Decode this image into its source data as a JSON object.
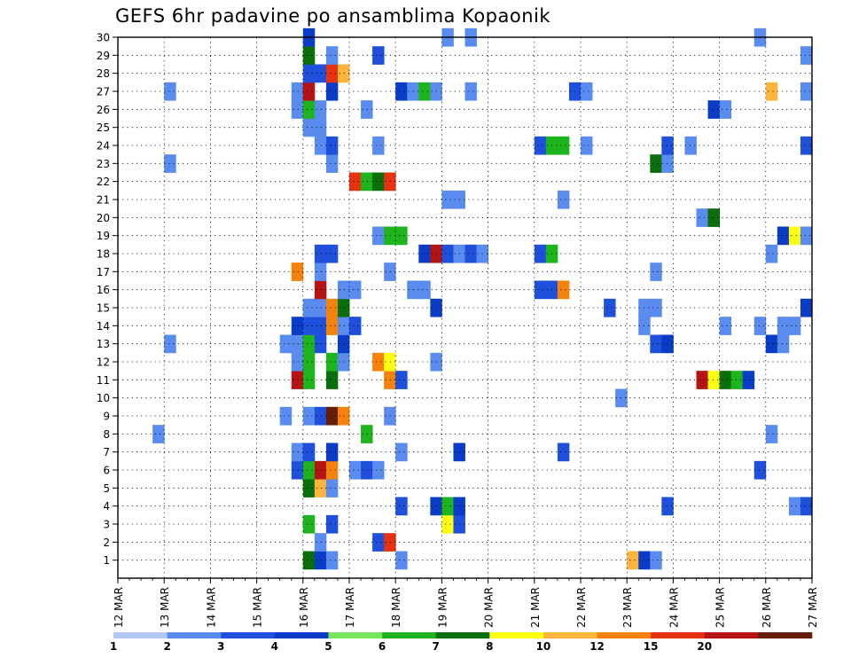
{
  "page": {
    "title": "GEFS 6hr padavine po ansamblima Kopaonik"
  },
  "chart_data": {
    "type": "heatmap",
    "title": "GEFS 6hr padavine po ansamblima Kopaonik",
    "xlabel": "",
    "ylabel": "",
    "x_ticks": [
      "12 MAR",
      "13 MAR",
      "14 MAR",
      "15 MAR",
      "16 MAR",
      "17 MAR",
      "18 MAR",
      "19 MAR",
      "20 MAR",
      "21 MAR",
      "22 MAR",
      "23 MAR",
      "24 MAR",
      "25 MAR",
      "26 MAR",
      "27 MAR"
    ],
    "y_ticks": [
      1,
      2,
      3,
      4,
      5,
      6,
      7,
      8,
      9,
      10,
      11,
      12,
      13,
      14,
      15,
      16,
      17,
      18,
      19,
      20,
      21,
      22,
      23,
      24,
      25,
      26,
      27,
      28,
      29,
      30
    ],
    "x_range_steps": [
      0,
      60
    ],
    "y_range": [
      0,
      30
    ],
    "steps_per_day": 4,
    "grid": "dotted",
    "colorbar": {
      "placement": "bottom",
      "levels": [
        "1",
        "2",
        "3",
        "4",
        "5",
        "6",
        "7",
        "8",
        "10",
        "12",
        "15",
        "20"
      ],
      "colors": [
        "#b4c8f5",
        "#5a8cf0",
        "#1e50dc",
        "#0a3cc8",
        "#78e65a",
        "#1eb41e",
        "#0a6e0a",
        "#ffff14",
        "#ffb43c",
        "#f5820a",
        "#e6320f",
        "#b41414",
        "#641e0a"
      ]
    },
    "cells": [
      {
        "m": 1,
        "t": 16,
        "c": 6
      },
      {
        "m": 1,
        "t": 17,
        "c": 3
      },
      {
        "m": 1,
        "t": 18,
        "c": 1
      },
      {
        "m": 1,
        "t": 24,
        "c": 1
      },
      {
        "m": 1,
        "t": 44,
        "c": 8
      },
      {
        "m": 1,
        "t": 45,
        "c": 3
      },
      {
        "m": 1,
        "t": 46,
        "c": 1
      },
      {
        "m": 2,
        "t": 17,
        "c": 1
      },
      {
        "m": 2,
        "t": 22,
        "c": 2
      },
      {
        "m": 2,
        "t": 23,
        "c": 10
      },
      {
        "m": 3,
        "t": 16,
        "c": 5
      },
      {
        "m": 3,
        "t": 18,
        "c": 2
      },
      {
        "m": 3,
        "t": 28,
        "c": 7
      },
      {
        "m": 3,
        "t": 29,
        "c": 2
      },
      {
        "m": 4,
        "t": 24,
        "c": 2
      },
      {
        "m": 4,
        "t": 27,
        "c": 3
      },
      {
        "m": 4,
        "t": 28,
        "c": 5
      },
      {
        "m": 4,
        "t": 29,
        "c": 3
      },
      {
        "m": 4,
        "t": 47,
        "c": 2
      },
      {
        "m": 4,
        "t": 58,
        "c": 1
      },
      {
        "m": 4,
        "t": 59,
        "c": 2
      },
      {
        "m": 5,
        "t": 16,
        "c": 6
      },
      {
        "m": 5,
        "t": 17,
        "c": 8
      },
      {
        "m": 5,
        "t": 18,
        "c": 1
      },
      {
        "m": 6,
        "t": 15,
        "c": 2
      },
      {
        "m": 6,
        "t": 16,
        "c": 5
      },
      {
        "m": 6,
        "t": 17,
        "c": 11
      },
      {
        "m": 6,
        "t": 18,
        "c": 9
      },
      {
        "m": 6,
        "t": 20,
        "c": 1
      },
      {
        "m": 6,
        "t": 21,
        "c": 2
      },
      {
        "m": 6,
        "t": 22,
        "c": 1
      },
      {
        "m": 6,
        "t": 55,
        "c": 2
      },
      {
        "m": 7,
        "t": 15,
        "c": 1
      },
      {
        "m": 7,
        "t": 16,
        "c": 2
      },
      {
        "m": 7,
        "t": 18,
        "c": 3
      },
      {
        "m": 7,
        "t": 24,
        "c": 1
      },
      {
        "m": 7,
        "t": 29,
        "c": 3
      },
      {
        "m": 7,
        "t": 38,
        "c": 2
      },
      {
        "m": 8,
        "t": 3,
        "c": 1
      },
      {
        "m": 8,
        "t": 21,
        "c": 5
      },
      {
        "m": 8,
        "t": 56,
        "c": 1
      },
      {
        "m": 9,
        "t": 14,
        "c": 1
      },
      {
        "m": 9,
        "t": 16,
        "c": 1
      },
      {
        "m": 9,
        "t": 17,
        "c": 2
      },
      {
        "m": 9,
        "t": 18,
        "c": 12
      },
      {
        "m": 9,
        "t": 19,
        "c": 9
      },
      {
        "m": 9,
        "t": 23,
        "c": 1
      },
      {
        "m": 10,
        "t": 43,
        "c": 1
      },
      {
        "m": 11,
        "t": 15,
        "c": 11
      },
      {
        "m": 11,
        "t": 16,
        "c": 5
      },
      {
        "m": 11,
        "t": 18,
        "c": 6
      },
      {
        "m": 11,
        "t": 23,
        "c": 9
      },
      {
        "m": 11,
        "t": 24,
        "c": 2
      },
      {
        "m": 11,
        "t": 50,
        "c": 11
      },
      {
        "m": 11,
        "t": 51,
        "c": 7
      },
      {
        "m": 11,
        "t": 52,
        "c": 6
      },
      {
        "m": 11,
        "t": 53,
        "c": 5
      },
      {
        "m": 11,
        "t": 54,
        "c": 3
      },
      {
        "m": 12,
        "t": 15,
        "c": 1
      },
      {
        "m": 12,
        "t": 16,
        "c": 5
      },
      {
        "m": 12,
        "t": 18,
        "c": 5
      },
      {
        "m": 12,
        "t": 19,
        "c": 1
      },
      {
        "m": 12,
        "t": 22,
        "c": 9
      },
      {
        "m": 12,
        "t": 23,
        "c": 7
      },
      {
        "m": 12,
        "t": 27,
        "c": 1
      },
      {
        "m": 13,
        "t": 4,
        "c": 1
      },
      {
        "m": 13,
        "t": 14,
        "c": 1
      },
      {
        "m": 13,
        "t": 15,
        "c": 1
      },
      {
        "m": 13,
        "t": 16,
        "c": 5
      },
      {
        "m": 13,
        "t": 17,
        "c": 2
      },
      {
        "m": 13,
        "t": 19,
        "c": 3
      },
      {
        "m": 13,
        "t": 46,
        "c": 2
      },
      {
        "m": 13,
        "t": 47,
        "c": 3
      },
      {
        "m": 13,
        "t": 56,
        "c": 3
      },
      {
        "m": 13,
        "t": 57,
        "c": 1
      },
      {
        "m": 14,
        "t": 15,
        "c": 3
      },
      {
        "m": 14,
        "t": 16,
        "c": 2
      },
      {
        "m": 14,
        "t": 17,
        "c": 2
      },
      {
        "m": 14,
        "t": 18,
        "c": 9
      },
      {
        "m": 14,
        "t": 19,
        "c": 1
      },
      {
        "m": 14,
        "t": 20,
        "c": 2
      },
      {
        "m": 14,
        "t": 45,
        "c": 1
      },
      {
        "m": 14,
        "t": 52,
        "c": 1
      },
      {
        "m": 14,
        "t": 55,
        "c": 1
      },
      {
        "m": 14,
        "t": 57,
        "c": 1
      },
      {
        "m": 14,
        "t": 58,
        "c": 1
      },
      {
        "m": 15,
        "t": 16,
        "c": 1
      },
      {
        "m": 15,
        "t": 17,
        "c": 1
      },
      {
        "m": 15,
        "t": 18,
        "c": 9
      },
      {
        "m": 15,
        "t": 19,
        "c": 6
      },
      {
        "m": 15,
        "t": 27,
        "c": 3
      },
      {
        "m": 15,
        "t": 42,
        "c": 2
      },
      {
        "m": 15,
        "t": 45,
        "c": 1
      },
      {
        "m": 15,
        "t": 46,
        "c": 1
      },
      {
        "m": 15,
        "t": 59,
        "c": 3
      },
      {
        "m": 16,
        "t": 17,
        "c": 11
      },
      {
        "m": 16,
        "t": 19,
        "c": 1
      },
      {
        "m": 16,
        "t": 20,
        "c": 1
      },
      {
        "m": 16,
        "t": 25,
        "c": 1
      },
      {
        "m": 16,
        "t": 26,
        "c": 1
      },
      {
        "m": 16,
        "t": 36,
        "c": 2
      },
      {
        "m": 16,
        "t": 37,
        "c": 2
      },
      {
        "m": 16,
        "t": 38,
        "c": 9
      },
      {
        "m": 17,
        "t": 15,
        "c": 9
      },
      {
        "m": 17,
        "t": 17,
        "c": 1
      },
      {
        "m": 17,
        "t": 23,
        "c": 1
      },
      {
        "m": 17,
        "t": 46,
        "c": 1
      },
      {
        "m": 18,
        "t": 17,
        "c": 2
      },
      {
        "m": 18,
        "t": 18,
        "c": 2
      },
      {
        "m": 18,
        "t": 26,
        "c": 3
      },
      {
        "m": 18,
        "t": 27,
        "c": 11
      },
      {
        "m": 18,
        "t": 28,
        "c": 2
      },
      {
        "m": 18,
        "t": 29,
        "c": 1
      },
      {
        "m": 18,
        "t": 30,
        "c": 2
      },
      {
        "m": 18,
        "t": 31,
        "c": 1
      },
      {
        "m": 18,
        "t": 36,
        "c": 2
      },
      {
        "m": 18,
        "t": 37,
        "c": 5
      },
      {
        "m": 18,
        "t": 56,
        "c": 1
      },
      {
        "m": 19,
        "t": 22,
        "c": 1
      },
      {
        "m": 19,
        "t": 23,
        "c": 5
      },
      {
        "m": 19,
        "t": 24,
        "c": 5
      },
      {
        "m": 19,
        "t": 57,
        "c": 3
      },
      {
        "m": 19,
        "t": 58,
        "c": 7
      },
      {
        "m": 19,
        "t": 59,
        "c": 1
      },
      {
        "m": 20,
        "t": 50,
        "c": 1
      },
      {
        "m": 20,
        "t": 51,
        "c": 6
      },
      {
        "m": 21,
        "t": 28,
        "c": 1
      },
      {
        "m": 21,
        "t": 29,
        "c": 1
      },
      {
        "m": 21,
        "t": 38,
        "c": 1
      },
      {
        "m": 22,
        "t": 20,
        "c": 10
      },
      {
        "m": 22,
        "t": 21,
        "c": 5
      },
      {
        "m": 22,
        "t": 22,
        "c": 6
      },
      {
        "m": 22,
        "t": 23,
        "c": 10
      },
      {
        "m": 23,
        "t": 4,
        "c": 1
      },
      {
        "m": 23,
        "t": 18,
        "c": 1
      },
      {
        "m": 23,
        "t": 46,
        "c": 6
      },
      {
        "m": 23,
        "t": 47,
        "c": 1
      },
      {
        "m": 24,
        "t": 17,
        "c": 1
      },
      {
        "m": 24,
        "t": 18,
        "c": 2
      },
      {
        "m": 24,
        "t": 22,
        "c": 1
      },
      {
        "m": 24,
        "t": 36,
        "c": 2
      },
      {
        "m": 24,
        "t": 37,
        "c": 5
      },
      {
        "m": 24,
        "t": 38,
        "c": 5
      },
      {
        "m": 24,
        "t": 40,
        "c": 1
      },
      {
        "m": 24,
        "t": 47,
        "c": 2
      },
      {
        "m": 24,
        "t": 49,
        "c": 1
      },
      {
        "m": 24,
        "t": 59,
        "c": 2
      },
      {
        "m": 25,
        "t": 16,
        "c": 1
      },
      {
        "m": 25,
        "t": 17,
        "c": 1
      },
      {
        "m": 26,
        "t": 15,
        "c": 1
      },
      {
        "m": 26,
        "t": 16,
        "c": 5
      },
      {
        "m": 26,
        "t": 17,
        "c": 1
      },
      {
        "m": 26,
        "t": 21,
        "c": 1
      },
      {
        "m": 26,
        "t": 51,
        "c": 3
      },
      {
        "m": 26,
        "t": 52,
        "c": 1
      },
      {
        "m": 27,
        "t": 4,
        "c": 1
      },
      {
        "m": 27,
        "t": 15,
        "c": 1
      },
      {
        "m": 27,
        "t": 16,
        "c": 11
      },
      {
        "m": 27,
        "t": 18,
        "c": 3
      },
      {
        "m": 27,
        "t": 24,
        "c": 3
      },
      {
        "m": 27,
        "t": 25,
        "c": 1
      },
      {
        "m": 27,
        "t": 26,
        "c": 5
      },
      {
        "m": 27,
        "t": 27,
        "c": 1
      },
      {
        "m": 27,
        "t": 30,
        "c": 1
      },
      {
        "m": 27,
        "t": 39,
        "c": 2
      },
      {
        "m": 27,
        "t": 40,
        "c": 1
      },
      {
        "m": 27,
        "t": 56,
        "c": 8
      },
      {
        "m": 27,
        "t": 59,
        "c": 1
      },
      {
        "m": 28,
        "t": 16,
        "c": 2
      },
      {
        "m": 28,
        "t": 17,
        "c": 2
      },
      {
        "m": 28,
        "t": 18,
        "c": 10
      },
      {
        "m": 28,
        "t": 19,
        "c": 8
      },
      {
        "m": 29,
        "t": 16,
        "c": 6
      },
      {
        "m": 29,
        "t": 18,
        "c": 1
      },
      {
        "m": 29,
        "t": 22,
        "c": 2
      },
      {
        "m": 29,
        "t": 59,
        "c": 1
      },
      {
        "m": 30,
        "t": 16,
        "c": 3
      },
      {
        "m": 30,
        "t": 28,
        "c": 1
      },
      {
        "m": 30,
        "t": 30,
        "c": 1
      },
      {
        "m": 30,
        "t": 55,
        "c": 1
      }
    ]
  }
}
